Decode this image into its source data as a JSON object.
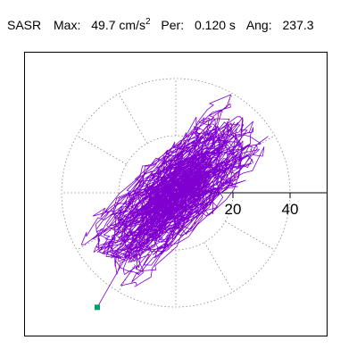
{
  "header": {
    "label": "SASR",
    "max_label": "Max:",
    "max_value": "49.7 cm/s",
    "max_exp": "2",
    "per_label": "Per:",
    "per_value": "0.120 s",
    "ang_label": "Ang:",
    "ang_value": "237.3"
  },
  "chart_data": {
    "type": "polar-orbit",
    "title": "SASR",
    "max": 49.7,
    "max_unit": "cm/s2",
    "period_s": 0.12,
    "angle_deg": 237.3,
    "radial_ticks": [
      20,
      40
    ],
    "tick_labels": [
      "20",
      "40"
    ],
    "rlim": [
      0,
      40
    ],
    "grid": true,
    "grid_spokes_deg": [
      0,
      30,
      60,
      90,
      120,
      150,
      180,
      210,
      240,
      270,
      300,
      330
    ],
    "trace_color": "#8000d0",
    "end_marker_color": "#00a070",
    "end_point_xy": [
      -27.5,
      -40.1
    ]
  }
}
